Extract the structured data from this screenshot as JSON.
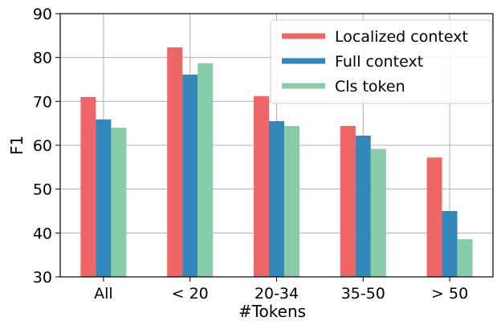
{
  "chart_data": {
    "type": "bar",
    "categories": [
      "All",
      "< 20",
      "20-34",
      "35-50",
      "> 50"
    ],
    "series": [
      {
        "name": "Localized context",
        "color": "#ee6666",
        "values": [
          71.0,
          82.3,
          71.2,
          64.4,
          57.2
        ]
      },
      {
        "name": "Full context",
        "color": "#3388bb",
        "values": [
          65.9,
          76.1,
          65.5,
          62.2,
          45.0
        ]
      },
      {
        "name": "Cls token",
        "color": "#88ccaa",
        "values": [
          64.0,
          78.7,
          64.4,
          59.2,
          38.6
        ]
      }
    ],
    "xlabel": "#Tokens",
    "ylabel": "F1",
    "ylim": [
      30,
      90
    ],
    "yticks": [
      30,
      40,
      50,
      60,
      70,
      80,
      90
    ],
    "grid": true,
    "legend_position": "top-right"
  }
}
